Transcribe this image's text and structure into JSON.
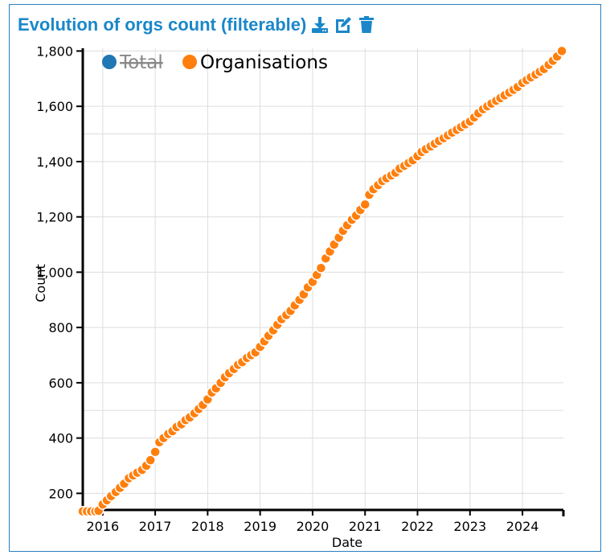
{
  "header": {
    "title": "Evolution of orgs count (filterable)",
    "icons": [
      "download-icon",
      "edit-icon",
      "trash-icon"
    ]
  },
  "colors": {
    "accent": "#1b87c9",
    "total": "#1f77b4",
    "orgs": "#ff7f0e"
  },
  "chart_data": {
    "type": "scatter",
    "title": "Evolution of orgs count (filterable)",
    "xlabel": "Date",
    "ylabel": "Count",
    "xlim": [
      2015.62,
      2024.78
    ],
    "ylim": [
      140,
      1810
    ],
    "xticks": [
      "2016",
      "2017",
      "2018",
      "2019",
      "2020",
      "2021",
      "2022",
      "2023",
      "2024"
    ],
    "yticks": [
      "200",
      "400",
      "600",
      "800",
      "1,000",
      "1,200",
      "1,400",
      "1,600",
      "1,800"
    ],
    "legend_position": "top-left",
    "grid": true,
    "series": [
      {
        "name": "Total",
        "hidden": true,
        "color": "#1f77b4",
        "points": []
      },
      {
        "name": "Organisations",
        "hidden": false,
        "color": "#ff7f0e",
        "points": [
          [
            2015.62,
            135
          ],
          [
            2015.7,
            135
          ],
          [
            2015.78,
            135
          ],
          [
            2015.86,
            135
          ],
          [
            2015.92,
            137
          ],
          [
            2016.0,
            160
          ],
          [
            2016.08,
            175
          ],
          [
            2016.16,
            190
          ],
          [
            2016.25,
            205
          ],
          [
            2016.33,
            220
          ],
          [
            2016.41,
            235
          ],
          [
            2016.5,
            255
          ],
          [
            2016.58,
            265
          ],
          [
            2016.66,
            275
          ],
          [
            2016.75,
            285
          ],
          [
            2016.83,
            300
          ],
          [
            2016.91,
            320
          ],
          [
            2017.0,
            350
          ],
          [
            2017.08,
            385
          ],
          [
            2017.16,
            400
          ],
          [
            2017.25,
            415
          ],
          [
            2017.33,
            425
          ],
          [
            2017.41,
            440
          ],
          [
            2017.5,
            450
          ],
          [
            2017.58,
            465
          ],
          [
            2017.66,
            475
          ],
          [
            2017.75,
            490
          ],
          [
            2017.83,
            505
          ],
          [
            2017.91,
            520
          ],
          [
            2018.0,
            540
          ],
          [
            2018.08,
            565
          ],
          [
            2018.16,
            580
          ],
          [
            2018.25,
            600
          ],
          [
            2018.33,
            620
          ],
          [
            2018.41,
            635
          ],
          [
            2018.5,
            650
          ],
          [
            2018.58,
            665
          ],
          [
            2018.66,
            675
          ],
          [
            2018.75,
            690
          ],
          [
            2018.83,
            700
          ],
          [
            2018.91,
            710
          ],
          [
            2019.0,
            730
          ],
          [
            2019.08,
            750
          ],
          [
            2019.16,
            770
          ],
          [
            2019.25,
            790
          ],
          [
            2019.33,
            810
          ],
          [
            2019.41,
            830
          ],
          [
            2019.5,
            845
          ],
          [
            2019.58,
            860
          ],
          [
            2019.66,
            880
          ],
          [
            2019.75,
            900
          ],
          [
            2019.83,
            920
          ],
          [
            2019.91,
            945
          ],
          [
            2020.0,
            965
          ],
          [
            2020.08,
            990
          ],
          [
            2020.16,
            1015
          ],
          [
            2020.25,
            1050
          ],
          [
            2020.33,
            1075
          ],
          [
            2020.41,
            1100
          ],
          [
            2020.5,
            1125
          ],
          [
            2020.58,
            1150
          ],
          [
            2020.66,
            1170
          ],
          [
            2020.75,
            1190
          ],
          [
            2020.83,
            1205
          ],
          [
            2020.91,
            1225
          ],
          [
            2021.0,
            1245
          ],
          [
            2021.08,
            1280
          ],
          [
            2021.16,
            1300
          ],
          [
            2021.25,
            1315
          ],
          [
            2021.33,
            1330
          ],
          [
            2021.41,
            1340
          ],
          [
            2021.5,
            1350
          ],
          [
            2021.58,
            1360
          ],
          [
            2021.66,
            1375
          ],
          [
            2021.75,
            1385
          ],
          [
            2021.83,
            1395
          ],
          [
            2021.91,
            1405
          ],
          [
            2022.0,
            1420
          ],
          [
            2022.08,
            1435
          ],
          [
            2022.16,
            1445
          ],
          [
            2022.25,
            1455
          ],
          [
            2022.33,
            1465
          ],
          [
            2022.41,
            1475
          ],
          [
            2022.5,
            1485
          ],
          [
            2022.58,
            1495
          ],
          [
            2022.66,
            1505
          ],
          [
            2022.75,
            1515
          ],
          [
            2022.83,
            1525
          ],
          [
            2022.91,
            1535
          ],
          [
            2023.0,
            1545
          ],
          [
            2023.08,
            1560
          ],
          [
            2023.16,
            1575
          ],
          [
            2023.25,
            1590
          ],
          [
            2023.33,
            1600
          ],
          [
            2023.41,
            1610
          ],
          [
            2023.5,
            1620
          ],
          [
            2023.58,
            1630
          ],
          [
            2023.66,
            1640
          ],
          [
            2023.75,
            1650
          ],
          [
            2023.83,
            1660
          ],
          [
            2023.91,
            1670
          ],
          [
            2024.0,
            1685
          ],
          [
            2024.08,
            1695
          ],
          [
            2024.16,
            1705
          ],
          [
            2024.25,
            1715
          ],
          [
            2024.33,
            1725
          ],
          [
            2024.41,
            1735
          ],
          [
            2024.5,
            1750
          ],
          [
            2024.58,
            1765
          ],
          [
            2024.66,
            1780
          ],
          [
            2024.75,
            1800
          ]
        ]
      }
    ]
  }
}
